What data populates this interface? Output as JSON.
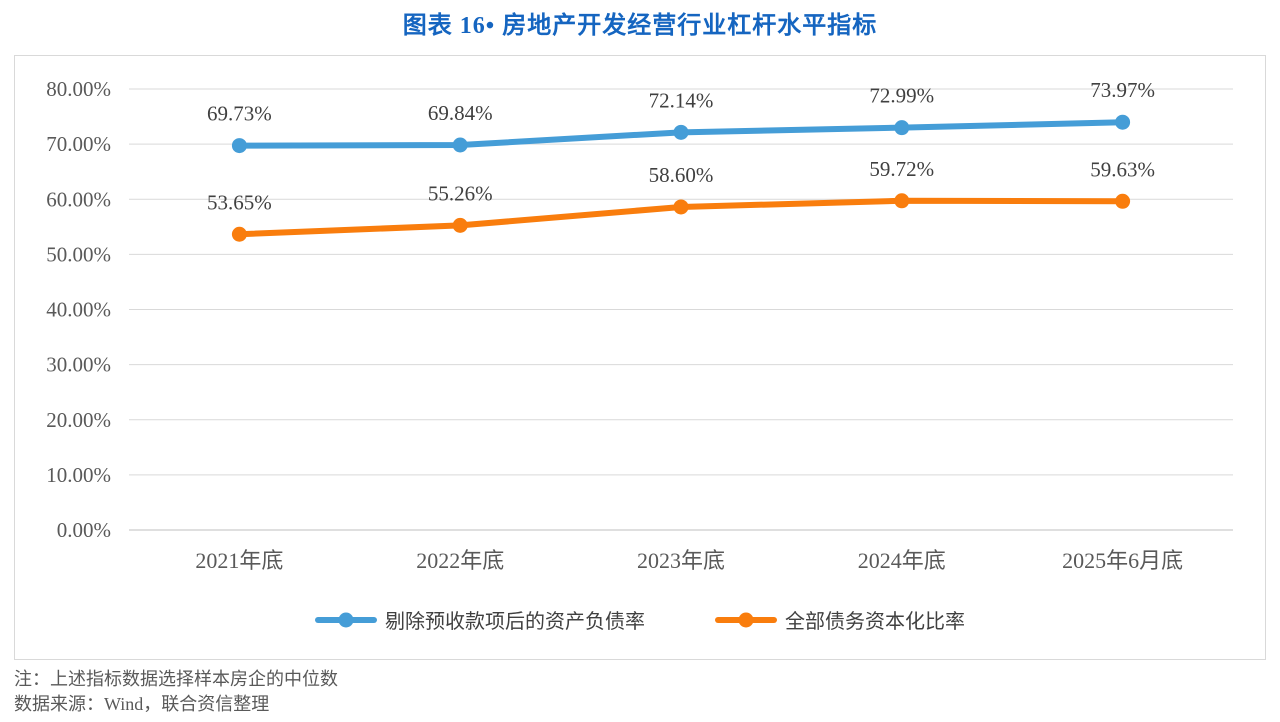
{
  "title": "图表 16• 房地产开发经营行业杠杆水平指标",
  "notes": {
    "line1": "注：上述指标数据选择样本房企的中位数",
    "line2": "数据来源：Wind，联合资信整理"
  },
  "colors": {
    "title_text": "#1565C0",
    "series_blue": "#459DD7",
    "series_orange": "#F97D0D",
    "gridline": "#D9D9D9",
    "axis_line": "#BFBFBF",
    "tick_text": "#595959",
    "data_label_text": "#404040",
    "frame_border": "#D9D9D9"
  },
  "chart_data": {
    "type": "line",
    "title": "图表 16• 房地产开发经营行业杠杆水平指标",
    "categories": [
      "2021年底",
      "2022年底",
      "2023年底",
      "2024年底",
      "2025年6月底"
    ],
    "series": [
      {
        "name": "剔除预收款项后的资产负债率",
        "color": "#459DD7",
        "values": [
          69.73,
          69.84,
          72.14,
          72.99,
          73.97
        ],
        "labels": [
          "69.73%",
          "69.84%",
          "72.14%",
          "72.99%",
          "73.97%"
        ]
      },
      {
        "name": "全部债务资本化比率",
        "color": "#F97D0D",
        "values": [
          53.65,
          55.26,
          58.6,
          59.72,
          59.63
        ],
        "labels": [
          "53.65%",
          "55.26%",
          "58.60%",
          "59.72%",
          "59.63%"
        ]
      }
    ],
    "y_axis": {
      "min": 0,
      "max": 80,
      "step": 10,
      "tick_labels": [
        "0.00%",
        "10.00%",
        "20.00%",
        "30.00%",
        "40.00%",
        "50.00%",
        "60.00%",
        "70.00%",
        "80.00%"
      ]
    },
    "xlabel": "",
    "ylabel": "",
    "grid": true,
    "legend_position": "bottom"
  }
}
